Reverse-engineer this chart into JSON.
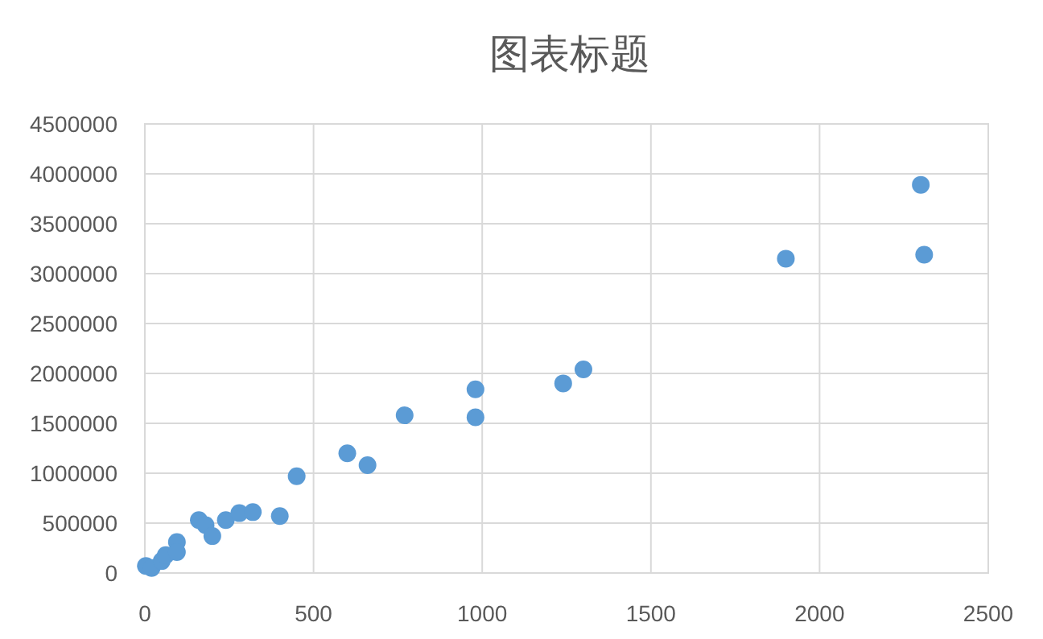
{
  "chart_data": {
    "type": "scatter",
    "title": "图表标题",
    "x": [
      3,
      20,
      50,
      62,
      95,
      95,
      160,
      180,
      200,
      240,
      280,
      320,
      400,
      450,
      600,
      660,
      770,
      980,
      980,
      1240,
      1300,
      1900,
      2300,
      2310
    ],
    "values": [
      70000,
      50000,
      120000,
      180000,
      310000,
      210000,
      530000,
      480000,
      370000,
      530000,
      600000,
      610000,
      570000,
      970000,
      1200000,
      1080000,
      1580000,
      1560000,
      1840000,
      1900000,
      2040000,
      3150000,
      3890000,
      3190000
    ],
    "color": "#5b9bd5",
    "marker": "circle",
    "grid": true,
    "xlim": [
      0,
      2500
    ],
    "xticks": [
      0,
      500,
      1000,
      1500,
      2000,
      2500
    ],
    "ylim": [
      0,
      4500000
    ],
    "yticks": [
      0,
      500000,
      1000000,
      1500000,
      2000000,
      2500000,
      3000000,
      3500000,
      4000000,
      4500000
    ]
  }
}
